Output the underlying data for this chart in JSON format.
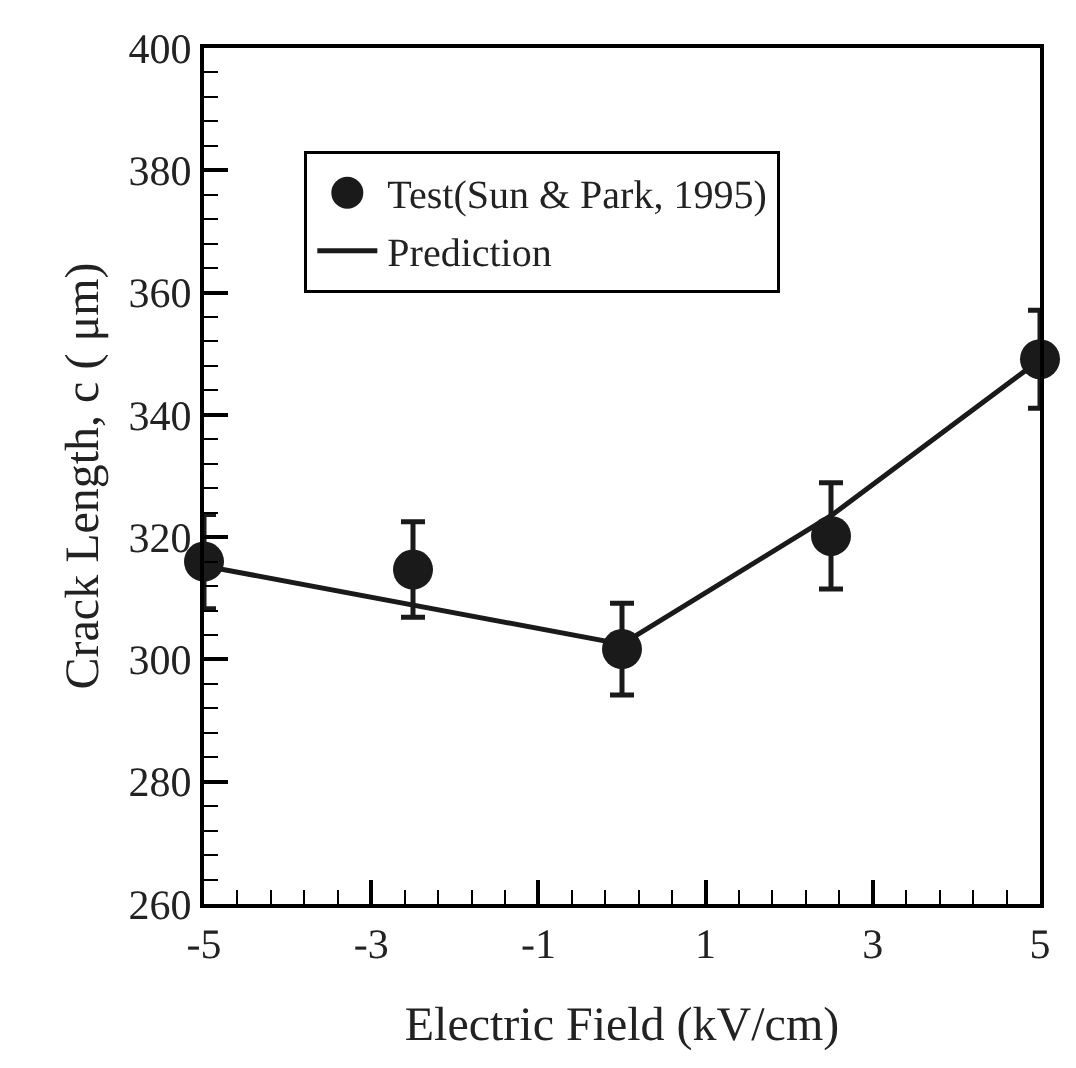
{
  "chart_data": {
    "type": "scatter",
    "xlabel": "Electric Field (kV/cm)",
    "ylabel": "Crack Length, c ( μm)",
    "xlim": [
      -5,
      5
    ],
    "ylim": [
      260,
      400
    ],
    "xticks": [
      -5,
      {
        "value": -4.6,
        "label": null
      },
      {
        "value": -4.2,
        "label": null
      },
      {
        "value": -3.8,
        "label": null
      },
      {
        "value": -3.4,
        "label": null
      },
      -3,
      {
        "value": -2.6,
        "label": null
      },
      {
        "value": -2.2,
        "label": null
      },
      {
        "value": -1.8,
        "label": null
      },
      {
        "value": -1.4,
        "label": null
      },
      -1,
      {
        "value": -0.6,
        "label": null
      },
      {
        "value": -0.2,
        "label": null
      },
      {
        "value": 0.2,
        "label": null
      },
      {
        "value": 0.6,
        "label": null
      },
      1,
      {
        "value": 1.4,
        "label": null
      },
      {
        "value": 1.8,
        "label": null
      },
      {
        "value": 2.2,
        "label": null
      },
      {
        "value": 2.6,
        "label": null
      },
      3,
      {
        "value": 3.4,
        "label": null
      },
      {
        "value": 3.8,
        "label": null
      },
      {
        "value": 4.2,
        "label": null
      },
      {
        "value": 4.6,
        "label": null
      },
      5
    ],
    "yticks": [
      260,
      {
        "value": 264,
        "label": null
      },
      {
        "value": 268,
        "label": null
      },
      {
        "value": 272,
        "label": null
      },
      {
        "value": 276,
        "label": null
      },
      280,
      {
        "value": 284,
        "label": null
      },
      {
        "value": 288,
        "label": null
      },
      {
        "value": 292,
        "label": null
      },
      {
        "value": 296,
        "label": null
      },
      300,
      {
        "value": 304,
        "label": null
      },
      {
        "value": 308,
        "label": null
      },
      {
        "value": 312,
        "label": null
      },
      {
        "value": 316,
        "label": null
      },
      320,
      {
        "value": 324,
        "label": null
      },
      {
        "value": 328,
        "label": null
      },
      {
        "value": 332,
        "label": null
      },
      {
        "value": 336,
        "label": null
      },
      340,
      {
        "value": 344,
        "label": null
      },
      {
        "value": 348,
        "label": null
      },
      {
        "value": 352,
        "label": null
      },
      {
        "value": 356,
        "label": null
      },
      360,
      {
        "value": 364,
        "label": null
      },
      {
        "value": 368,
        "label": null
      },
      {
        "value": 372,
        "label": null
      },
      {
        "value": 376,
        "label": null
      },
      380,
      {
        "value": 384,
        "label": null
      },
      {
        "value": 388,
        "label": null
      },
      {
        "value": 392,
        "label": null
      },
      {
        "value": 396,
        "label": null
      },
      400
    ],
    "grid": false,
    "legend": "top left",
    "series": [
      {
        "name": "Test(Sun & Park, 1995)",
        "marker": "circle",
        "color": "#1a1a1a",
        "x": [
          -5,
          -2.5,
          0,
          2.5,
          5
        ],
        "values": [
          316,
          314.7,
          301.7,
          320.2,
          349.1
        ],
        "errors": [
          7.7,
          7.8,
          7.5,
          8.7,
          8
        ]
      },
      {
        "name": "Prediction",
        "type": "line",
        "marker": "none",
        "line_style": "solid",
        "color": "#1a1a1a",
        "x": [
          -5,
          0,
          2.5,
          5
        ],
        "values": [
          315.3,
          302.5,
          323.5,
          349
        ]
      }
    ]
  }
}
